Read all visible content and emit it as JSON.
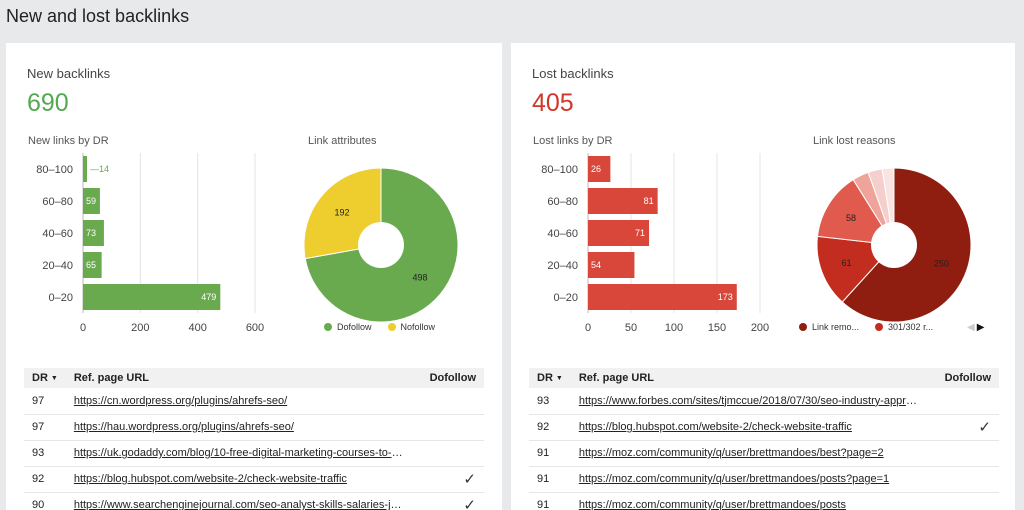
{
  "page_title": "New and lost backlinks",
  "new_panel": {
    "label": "New backlinks",
    "count": "690",
    "bar_title": "New links by DR",
    "pie_title": "Link attributes",
    "legend": [
      {
        "label": "Dofollow",
        "color": "#6aaa4f"
      },
      {
        "label": "Nofollow",
        "color": "#eecd2f"
      }
    ],
    "table": {
      "col_dr": "DR",
      "col_url": "Ref. page URL",
      "col_dofollow": "Dofollow",
      "rows": [
        {
          "dr": "97",
          "url": "https://cn.wordpress.org/plugins/ahrefs-seo/",
          "dofollow": ""
        },
        {
          "dr": "97",
          "url": "https://hau.wordpress.org/plugins/ahrefs-seo/",
          "dofollow": ""
        },
        {
          "dr": "93",
          "url": "https://uk.godaddy.com/blog/10-free-digital-marketing-courses-to-boo...",
          "dofollow": ""
        },
        {
          "dr": "92",
          "url": "https://blog.hubspot.com/website-2/check-website-traffic",
          "dofollow": "✓"
        },
        {
          "dr": "90",
          "url": "https://www.searchenginejournal.com/seo-analyst-skills-salaries-jobs/...",
          "dofollow": "✓"
        }
      ]
    }
  },
  "lost_panel": {
    "label": "Lost backlinks",
    "count": "405",
    "bar_title": "Lost links by DR",
    "pie_title": "Link lost reasons",
    "legend": [
      {
        "label": "Link remo...",
        "color": "#8f1d10"
      },
      {
        "label": "301/302 r...",
        "color": "#c22d1f"
      }
    ],
    "pager": {
      "prev": "◀",
      "next": "▶"
    },
    "table": {
      "col_dr": "DR",
      "col_url": "Ref. page URL",
      "col_dofollow": "Dofollow",
      "rows": [
        {
          "dr": "93",
          "url": "https://www.forbes.com/sites/tjmccue/2018/07/30/seo-industry-appro...",
          "dofollow": ""
        },
        {
          "dr": "92",
          "url": "https://blog.hubspot.com/website-2/check-website-traffic",
          "dofollow": "✓"
        },
        {
          "dr": "91",
          "url": "https://moz.com/community/q/user/brettmandoes/best?page=2",
          "dofollow": ""
        },
        {
          "dr": "91",
          "url": "https://moz.com/community/q/user/brettmandoes/posts?page=1",
          "dofollow": ""
        },
        {
          "dr": "91",
          "url": "https://moz.com/community/q/user/brettmandoes/posts",
          "dofollow": ""
        }
      ]
    }
  },
  "chart_data": [
    {
      "type": "bar",
      "orientation": "horizontal",
      "title": "New links by DR",
      "categories": [
        "80–100",
        "60–80",
        "40–60",
        "20–40",
        "0–20"
      ],
      "values": [
        14,
        59,
        73,
        65,
        479
      ],
      "xlim": [
        0,
        600
      ],
      "xticks": [
        "0",
        "200",
        "400",
        "600"
      ],
      "color": "#6aaa4f",
      "grid": true
    },
    {
      "type": "pie",
      "title": "Link attributes",
      "donut": true,
      "slices": [
        {
          "label": "Dofollow",
          "value": 498,
          "color": "#6aaa4f"
        },
        {
          "label": "Nofollow",
          "value": 192,
          "color": "#eecd2f"
        }
      ],
      "legend": "bottom"
    },
    {
      "type": "bar",
      "orientation": "horizontal",
      "title": "Lost links by DR",
      "categories": [
        "80–100",
        "60–80",
        "40–60",
        "20–40",
        "0–20"
      ],
      "values": [
        26,
        81,
        71,
        54,
        173
      ],
      "xlim": [
        0,
        200
      ],
      "xticks": [
        "0",
        "50",
        "100",
        "150",
        "200"
      ],
      "color": "#d9473a",
      "grid": true
    },
    {
      "type": "pie",
      "title": "Link lost reasons",
      "donut": true,
      "slices": [
        {
          "label": "Link remo...",
          "value": 250,
          "color": "#8f1d10"
        },
        {
          "label": "301/302 r...",
          "value": 61,
          "color": "#c22d1f"
        },
        {
          "value": 58,
          "color": "#e05a4e"
        },
        {
          "value": 14,
          "color": "#eea39b"
        },
        {
          "value": 12,
          "color": "#f5cfcb"
        },
        {
          "value": 10,
          "color": "#fae4e1"
        }
      ],
      "legend": "bottom"
    }
  ]
}
